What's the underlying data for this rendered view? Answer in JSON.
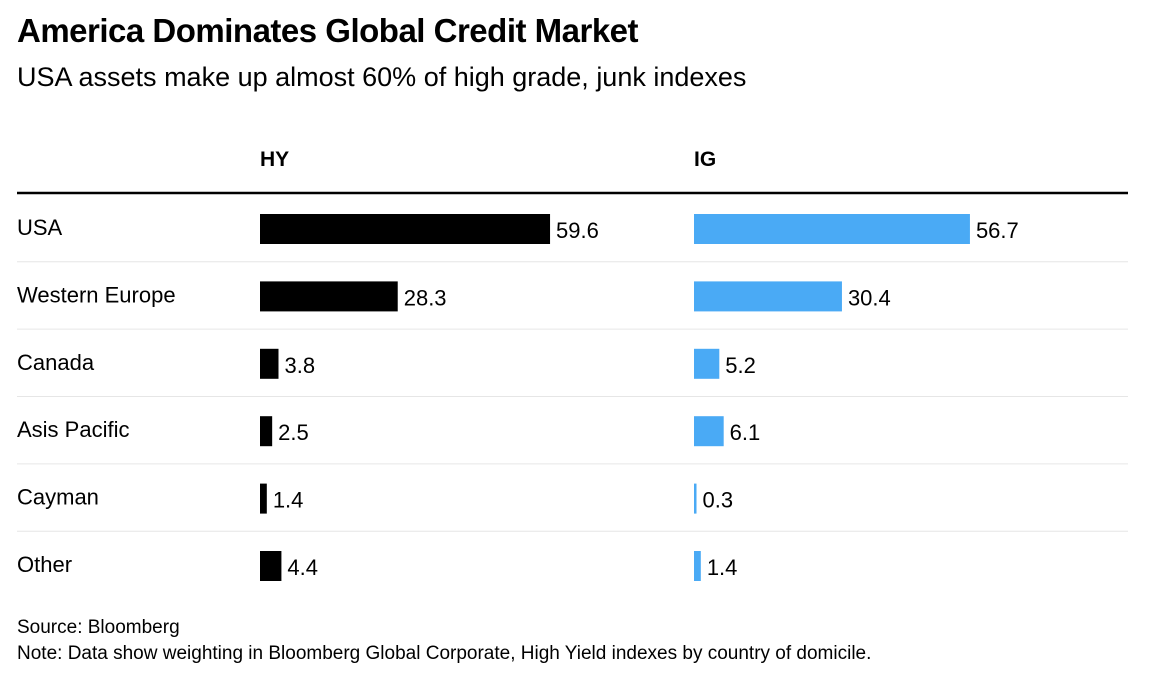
{
  "title": "America Dominates Global Credit Market",
  "subtitle": "USA assets make up almost 60% of high grade, junk indexes",
  "footer": {
    "source": "Source: Bloomberg",
    "note": "Note: Data show weighting in Bloomberg Global Corporate, High Yield indexes by country of domicile."
  },
  "colors": {
    "hy": "#000000",
    "ig": "#4aaaf5",
    "rule": "#000000",
    "row_divider": "#e6e6e6"
  },
  "chart_data": {
    "type": "bar",
    "orientation": "horizontal",
    "categories": [
      "USA",
      "Western Europe",
      "Canada",
      "Asis Pacific",
      "Cayman",
      "Other"
    ],
    "series": [
      {
        "name": "HY",
        "values": [
          59.6,
          28.3,
          3.8,
          2.5,
          1.4,
          4.4
        ],
        "value_labels": [
          "59.6",
          "28.3",
          "3.8",
          "2.5",
          "1.4",
          "4.4"
        ]
      },
      {
        "name": "IG",
        "values": [
          56.7,
          30.4,
          5.2,
          6.1,
          0.3,
          1.4
        ],
        "value_labels": [
          "56.7",
          "30.4",
          "5.2",
          "6.1",
          "0.3",
          "1.4"
        ]
      }
    ],
    "xlim": [
      0,
      60
    ],
    "grid": false,
    "legend": "none"
  }
}
